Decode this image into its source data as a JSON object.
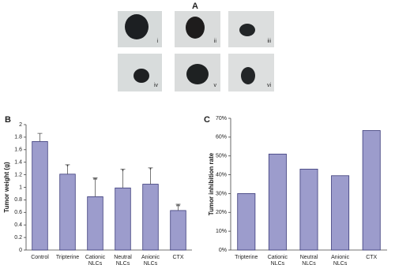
{
  "photo_panel": {
    "label": "A",
    "photos": [
      "i",
      "ii",
      "iii",
      "iv",
      "v",
      "vi"
    ]
  },
  "chart_data": [
    {
      "type": "bar",
      "panel_label": "B",
      "y_label": "Tumor weight (g)",
      "categories": [
        "Control",
        "Tripterine",
        "Cationic NLCs",
        "Neutral NLCs",
        "Anionic NLCs",
        "CTX"
      ],
      "values": [
        1.73,
        1.21,
        0.85,
        0.99,
        1.05,
        0.63
      ],
      "errors": [
        0.13,
        0.15,
        0.3,
        0.3,
        0.26,
        0.1
      ],
      "significance": [
        null,
        "*",
        "**",
        "*",
        "*",
        "**"
      ],
      "color": "#9c9ccc",
      "edge_color": "#3b3b7a",
      "ylim": [
        0,
        2
      ],
      "yticks": [
        0,
        0.2,
        0.4,
        0.6,
        0.8,
        1,
        1.2,
        1.4,
        1.6,
        1.8,
        2
      ]
    },
    {
      "type": "bar",
      "panel_label": "C",
      "y_label": "Tumor inhibition rate",
      "categories": [
        "Tripterine",
        "Cationic NLCs",
        "Neutral NLCs",
        "Anionic NLCs",
        "CTX"
      ],
      "values": [
        30,
        51,
        43,
        39.5,
        63.5
      ],
      "color": "#9c9ccc",
      "edge_color": "#3b3b7a",
      "ylim": [
        0,
        70
      ],
      "yticks": [
        {
          "value": 0,
          "label": "0%"
        },
        {
          "value": 10,
          "label": "10%"
        },
        {
          "value": 20,
          "label": "20%"
        },
        {
          "value": 30,
          "label": "30%"
        },
        {
          "value": 40,
          "label": "40%"
        },
        {
          "value": 50,
          "label": "50%"
        },
        {
          "value": 60,
          "label": "60%"
        },
        {
          "value": 70,
          "label": "70%"
        }
      ]
    }
  ]
}
